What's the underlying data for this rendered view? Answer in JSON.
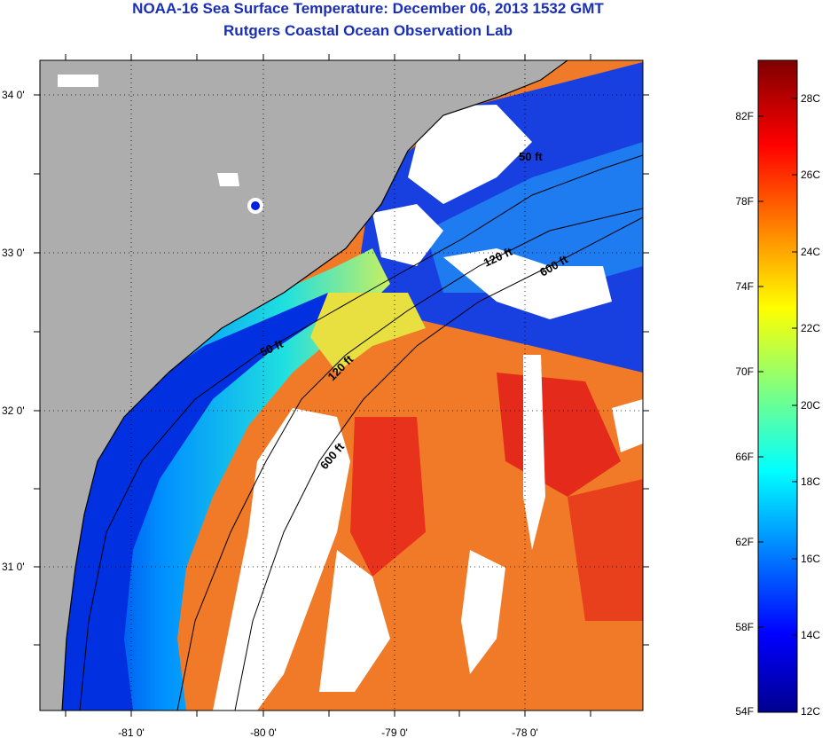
{
  "title_line1": "NOAA-16 Sea Surface Temperature:  December 06, 2013 1532 GMT",
  "title_line2": "Rutgers Coastal Ocean Observation Lab",
  "map": {
    "lat_labels": [
      "34 0'",
      "33 0'",
      "32 0'",
      "31 0'"
    ],
    "lon_labels": [
      "-81 0'",
      "-80 0'",
      "-79 0'",
      "-78 0'"
    ],
    "contour_labels": [
      "50 ft",
      "120 ft",
      "600 ft",
      "50 ft",
      "120 ft",
      "600 ft"
    ],
    "colors": {
      "land": "#adadad",
      "no_data": "#ffffff"
    }
  },
  "colorbar": {
    "fahrenheit_labels": [
      "82F",
      "78F",
      "74F",
      "70F",
      "66F",
      "62F",
      "58F",
      "54F"
    ],
    "celsius_labels": [
      "28C",
      "26C",
      "24C",
      "22C",
      "20C",
      "18C",
      "16C",
      "14C",
      "12C"
    ],
    "colormap": [
      "#7f0000",
      "#ff0000",
      "#ffff00",
      "#00ffff",
      "#0000ff",
      "#00008f"
    ]
  }
}
